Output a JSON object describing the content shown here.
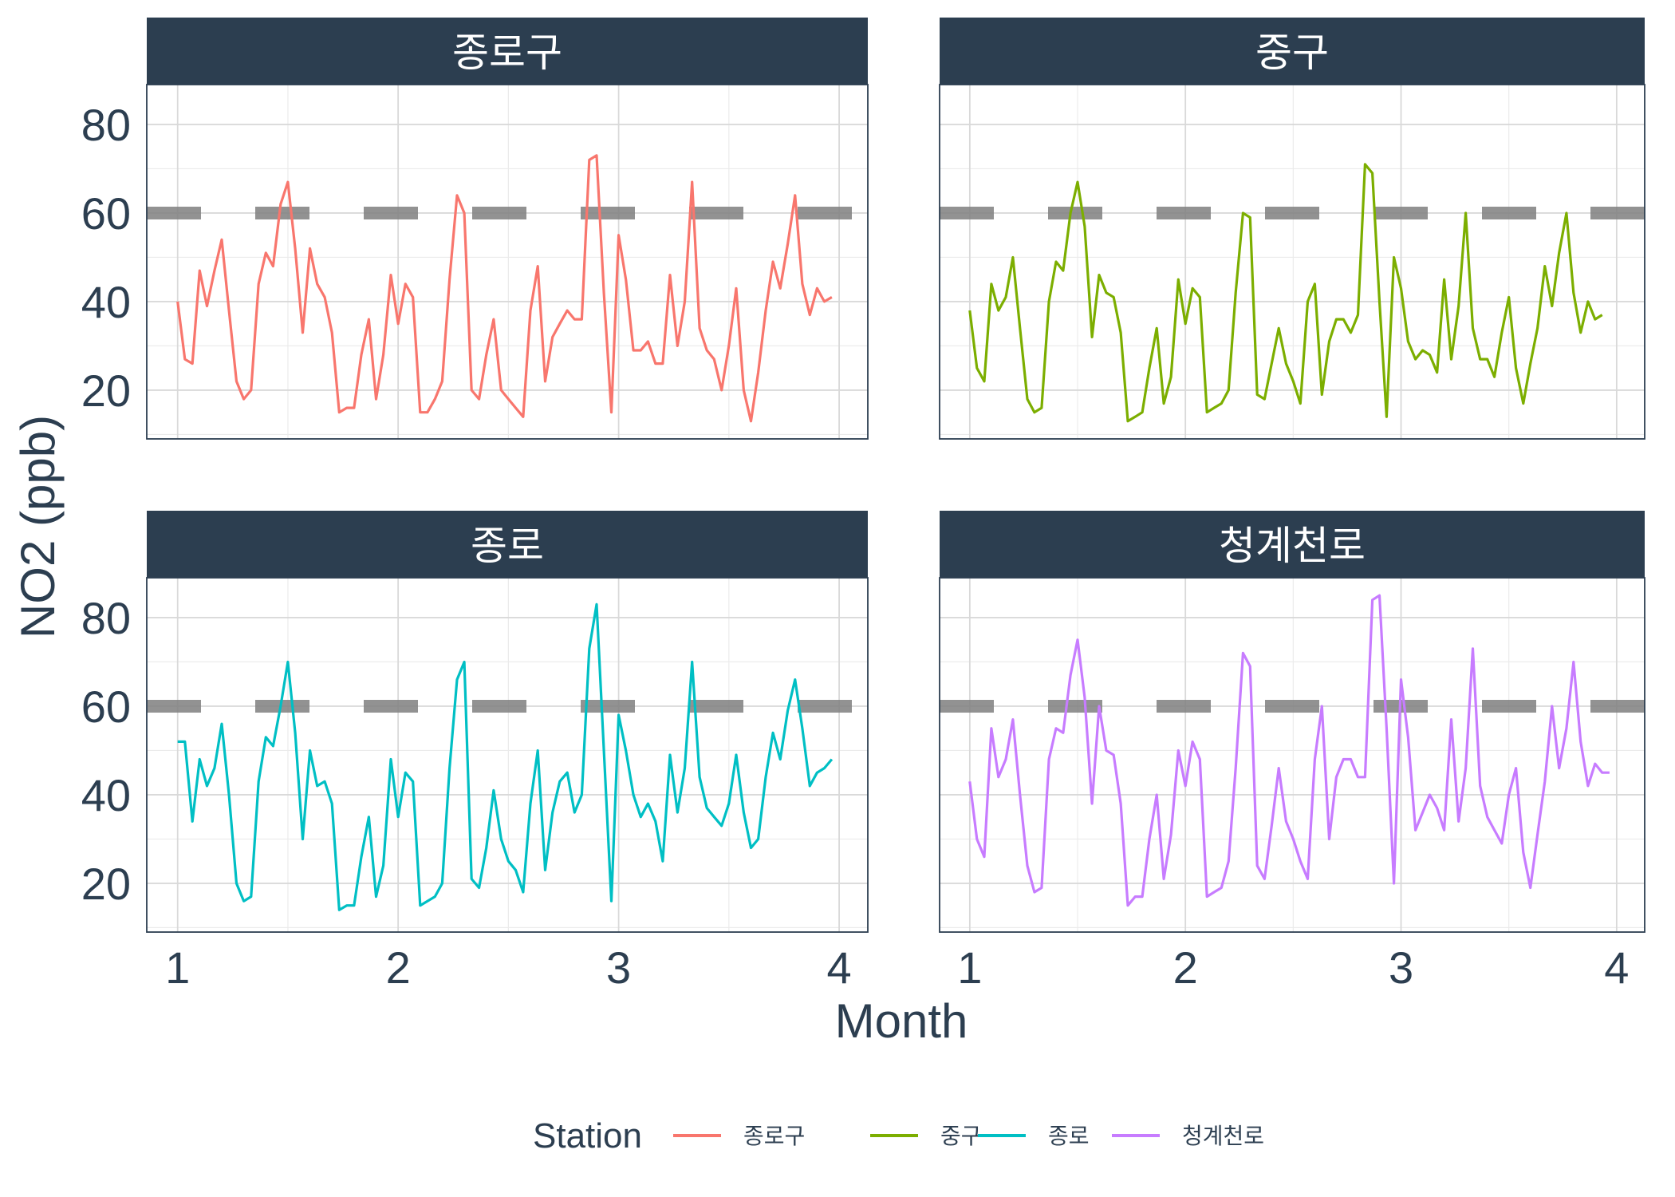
{
  "chart_data": {
    "type": "line",
    "xlabel": "Month",
    "ylabel": "NO2 (ppb)",
    "xlim": [
      0.86,
      4.13
    ],
    "ylim": [
      9,
      89
    ],
    "x_ticks": [
      1,
      2,
      3,
      4
    ],
    "y_ticks": [
      20,
      40,
      60,
      80
    ],
    "grid": true,
    "facet_layout": "2x2",
    "reference_line": {
      "y": 60,
      "style": "dashed",
      "color": "#7f7f7f"
    },
    "legend": {
      "title": "Station",
      "position": "bottom"
    },
    "series": [
      {
        "name": "종로구",
        "color": "#f8766d",
        "x": [
          1.0,
          1.033,
          1.067,
          1.1,
          1.133,
          1.167,
          1.2,
          1.233,
          1.267,
          1.3,
          1.333,
          1.367,
          1.4,
          1.433,
          1.467,
          1.5,
          1.533,
          1.567,
          1.6,
          1.633,
          1.667,
          1.7,
          1.733,
          1.767,
          1.8,
          1.833,
          1.867,
          1.9,
          1.933,
          1.967,
          2.0,
          2.033,
          2.067,
          2.1,
          2.133,
          2.167,
          2.2,
          2.233,
          2.267,
          2.3,
          2.333,
          2.367,
          2.4,
          2.433,
          2.467,
          2.5,
          2.533,
          2.567,
          2.6,
          2.633,
          2.667,
          2.7,
          2.733,
          2.767,
          2.8,
          2.833,
          2.867,
          2.9,
          2.933,
          2.967,
          3.0,
          3.033,
          3.067,
          3.1,
          3.133,
          3.167,
          3.2,
          3.233,
          3.267,
          3.3,
          3.333,
          3.367,
          3.4,
          3.433,
          3.467,
          3.5,
          3.533,
          3.567,
          3.6,
          3.633,
          3.667,
          3.7,
          3.733,
          3.767,
          3.8,
          3.833,
          3.867,
          3.9,
          3.933,
          3.967
        ],
        "y": [
          40,
          27,
          26,
          47,
          39,
          47,
          54,
          38,
          22,
          18,
          20,
          44,
          51,
          48,
          62,
          67,
          52,
          33,
          52,
          44,
          41,
          33,
          15,
          16,
          16,
          28,
          36,
          18,
          28,
          46,
          35,
          44,
          41,
          15,
          15,
          18,
          22,
          45,
          64,
          60,
          20,
          18,
          28,
          36,
          20,
          18,
          16,
          14,
          38,
          48,
          22,
          32,
          35,
          38,
          36,
          36,
          72,
          73,
          42,
          15,
          55,
          45,
          29,
          29,
          31,
          26,
          26,
          46,
          30,
          40,
          67,
          34,
          29,
          27,
          20,
          30,
          43,
          20,
          13,
          24,
          38,
          49,
          43,
          53,
          64,
          44,
          37,
          43,
          40,
          41
        ]
      },
      {
        "name": "중구",
        "color": "#7cae00",
        "x": [
          1.0,
          1.033,
          1.067,
          1.1,
          1.133,
          1.167,
          1.2,
          1.233,
          1.267,
          1.3,
          1.333,
          1.367,
          1.4,
          1.433,
          1.467,
          1.5,
          1.533,
          1.567,
          1.6,
          1.633,
          1.667,
          1.7,
          1.733,
          1.767,
          1.8,
          1.833,
          1.867,
          1.9,
          1.933,
          1.967,
          2.0,
          2.033,
          2.067,
          2.1,
          2.133,
          2.167,
          2.2,
          2.233,
          2.267,
          2.3,
          2.333,
          2.367,
          2.4,
          2.433,
          2.467,
          2.5,
          2.533,
          2.567,
          2.6,
          2.633,
          2.667,
          2.7,
          2.733,
          2.767,
          2.8,
          2.833,
          2.867,
          2.9,
          2.933,
          2.967,
          3.0,
          3.033,
          3.067,
          3.1,
          3.133,
          3.167,
          3.2,
          3.233,
          3.267,
          3.3,
          3.333,
          3.367,
          3.4,
          3.433,
          3.467,
          3.5,
          3.533,
          3.567,
          3.6,
          3.633,
          3.667,
          3.7,
          3.733,
          3.767,
          3.8,
          3.833,
          3.867,
          3.9,
          3.933,
          3.967
        ],
        "y": [
          38,
          25,
          22,
          44,
          38,
          41,
          50,
          34,
          18,
          15,
          16,
          40,
          49,
          47,
          60,
          67,
          57,
          32,
          46,
          42,
          41,
          33,
          13,
          14,
          15,
          25,
          34,
          17,
          23,
          45,
          35,
          43,
          41,
          15,
          16,
          17,
          20,
          42,
          60,
          59,
          19,
          18,
          26,
          34,
          26,
          22,
          17,
          40,
          44,
          19,
          31,
          36,
          36,
          33,
          37,
          71,
          69,
          40,
          14,
          50,
          43,
          31,
          27,
          29,
          28,
          24,
          45,
          27,
          39,
          60,
          34,
          27,
          27,
          23,
          33,
          41,
          25,
          17,
          26,
          34,
          48,
          39,
          51,
          60,
          42,
          33,
          40,
          36,
          37,
          null
        ]
      },
      {
        "name": "종로",
        "color": "#00bfc4",
        "x": [
          1.0,
          1.033,
          1.067,
          1.1,
          1.133,
          1.167,
          1.2,
          1.233,
          1.267,
          1.3,
          1.333,
          1.367,
          1.4,
          1.433,
          1.467,
          1.5,
          1.533,
          1.567,
          1.6,
          1.633,
          1.667,
          1.7,
          1.733,
          1.767,
          1.8,
          1.833,
          1.867,
          1.9,
          1.933,
          1.967,
          2.0,
          2.033,
          2.067,
          2.1,
          2.133,
          2.167,
          2.2,
          2.233,
          2.267,
          2.3,
          2.333,
          2.367,
          2.4,
          2.433,
          2.467,
          2.5,
          2.533,
          2.567,
          2.6,
          2.633,
          2.667,
          2.7,
          2.733,
          2.767,
          2.8,
          2.833,
          2.867,
          2.9,
          2.933,
          2.967,
          3.0,
          3.033,
          3.067,
          3.1,
          3.133,
          3.167,
          3.2,
          3.233,
          3.267,
          3.3,
          3.333,
          3.367,
          3.4,
          3.433,
          3.467,
          3.5,
          3.533,
          3.567,
          3.6,
          3.633,
          3.667,
          3.7,
          3.733,
          3.767,
          3.8,
          3.833,
          3.867,
          3.9,
          3.933,
          3.967
        ],
        "y": [
          52,
          52,
          34,
          48,
          42,
          46,
          56,
          40,
          20,
          16,
          17,
          43,
          53,
          51,
          60,
          70,
          54,
          30,
          50,
          42,
          43,
          38,
          14,
          15,
          15,
          26,
          35,
          17,
          24,
          48,
          35,
          45,
          43,
          15,
          16,
          17,
          20,
          46,
          66,
          70,
          21,
          19,
          28,
          41,
          30,
          25,
          23,
          18,
          38,
          50,
          23,
          36,
          43,
          45,
          36,
          40,
          73,
          83,
          50,
          16,
          58,
          50,
          40,
          35,
          38,
          34,
          25,
          49,
          36,
          46,
          70,
          44,
          37,
          35,
          33,
          38,
          49,
          36,
          28,
          30,
          44,
          54,
          48,
          59,
          66,
          55,
          42,
          45,
          46,
          48
        ]
      },
      {
        "name": "청계천로",
        "color": "#c77cff",
        "x": [
          1.0,
          1.033,
          1.067,
          1.1,
          1.133,
          1.167,
          1.2,
          1.233,
          1.267,
          1.3,
          1.333,
          1.367,
          1.4,
          1.433,
          1.467,
          1.5,
          1.533,
          1.567,
          1.6,
          1.633,
          1.667,
          1.7,
          1.733,
          1.767,
          1.8,
          1.833,
          1.867,
          1.9,
          1.933,
          1.967,
          2.0,
          2.033,
          2.067,
          2.1,
          2.133,
          2.167,
          2.2,
          2.233,
          2.267,
          2.3,
          2.333,
          2.367,
          2.4,
          2.433,
          2.467,
          2.5,
          2.533,
          2.567,
          2.6,
          2.633,
          2.667,
          2.7,
          2.733,
          2.767,
          2.8,
          2.833,
          2.867,
          2.9,
          2.933,
          2.967,
          3.0,
          3.033,
          3.067,
          3.1,
          3.133,
          3.167,
          3.2,
          3.233,
          3.267,
          3.3,
          3.333,
          3.367,
          3.4,
          3.433,
          3.467,
          3.5,
          3.533,
          3.567,
          3.6,
          3.633,
          3.667,
          3.7,
          3.733,
          3.767,
          3.8,
          3.833,
          3.867,
          3.9,
          3.933,
          3.967
        ],
        "y": [
          43,
          30,
          26,
          55,
          44,
          48,
          57,
          40,
          24,
          18,
          19,
          48,
          55,
          54,
          67,
          75,
          62,
          38,
          60,
          50,
          49,
          38,
          15,
          17,
          17,
          30,
          40,
          21,
          31,
          50,
          42,
          52,
          48,
          17,
          18,
          19,
          25,
          46,
          72,
          69,
          24,
          21,
          33,
          46,
          34,
          30,
          25,
          21,
          48,
          60,
          30,
          44,
          48,
          48,
          44,
          44,
          84,
          85,
          55,
          20,
          66,
          53,
          32,
          36,
          40,
          37,
          32,
          57,
          34,
          46,
          73,
          42,
          35,
          32,
          29,
          40,
          46,
          27,
          19,
          31,
          43,
          60,
          46,
          55,
          70,
          52,
          42,
          47,
          45,
          45
        ]
      }
    ]
  },
  "legend": {
    "title": "Station",
    "items": [
      {
        "label": "종로구",
        "color": "#f8766d"
      },
      {
        "label": "중구",
        "color": "#7cae00"
      },
      {
        "label": "종로",
        "color": "#00bfc4"
      },
      {
        "label": "청계천로",
        "color": "#c77cff"
      }
    ]
  },
  "colors": {
    "strip_bg": "#2c3e50",
    "text": "#2c3e50",
    "grid_major": "#d9d9d9",
    "grid_minor": "#ebebeb",
    "reference_line": "#7f7f7f"
  }
}
